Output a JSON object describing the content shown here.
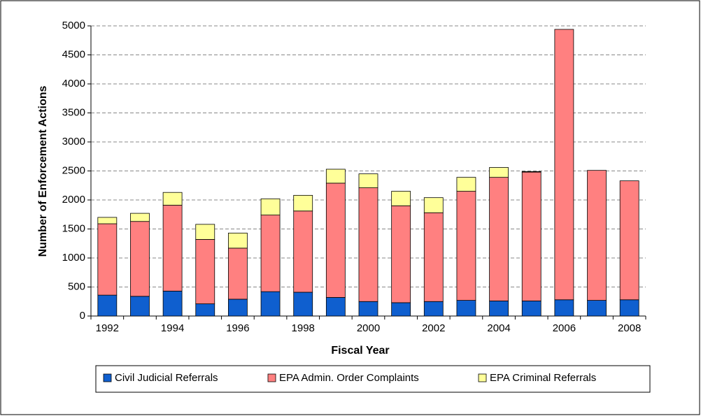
{
  "chart_data": {
    "type": "stacked-bar",
    "xlabel": "Fiscal Year",
    "ylabel": "Number of Enforcement Actions",
    "categories": [
      "1992",
      null,
      "1994",
      null,
      "1996",
      null,
      "1998",
      null,
      "2000",
      null,
      "2002",
      null,
      "2004",
      null,
      "2006",
      null,
      "2008"
    ],
    "series": [
      {
        "name": "Civil Judicial Referrals",
        "color": "#0f5fcf",
        "values": [
          360,
          340,
          430,
          210,
          290,
          420,
          410,
          320,
          250,
          230,
          250,
          270,
          260,
          260,
          280,
          270,
          280
        ]
      },
      {
        "name": "EPA Admin. Order Complaints",
        "color": "#ff8080",
        "values": [
          1230,
          1290,
          1480,
          1110,
          880,
          1320,
          1400,
          1970,
          1960,
          1670,
          1530,
          1880,
          2130,
          2220,
          4660,
          2240,
          2050
        ]
      },
      {
        "name": "EPA Criminal Referrals",
        "color": "#ffff99",
        "values": [
          110,
          140,
          220,
          260,
          260,
          280,
          270,
          240,
          240,
          250,
          260,
          240,
          170,
          10,
          0,
          0,
          0
        ]
      }
    ],
    "ylim": [
      0,
      5000
    ],
    "yticks": [
      0,
      500,
      1000,
      1500,
      2000,
      2500,
      3000,
      3500,
      4000,
      4500,
      5000
    ],
    "grid": true,
    "legend": "bottom"
  }
}
